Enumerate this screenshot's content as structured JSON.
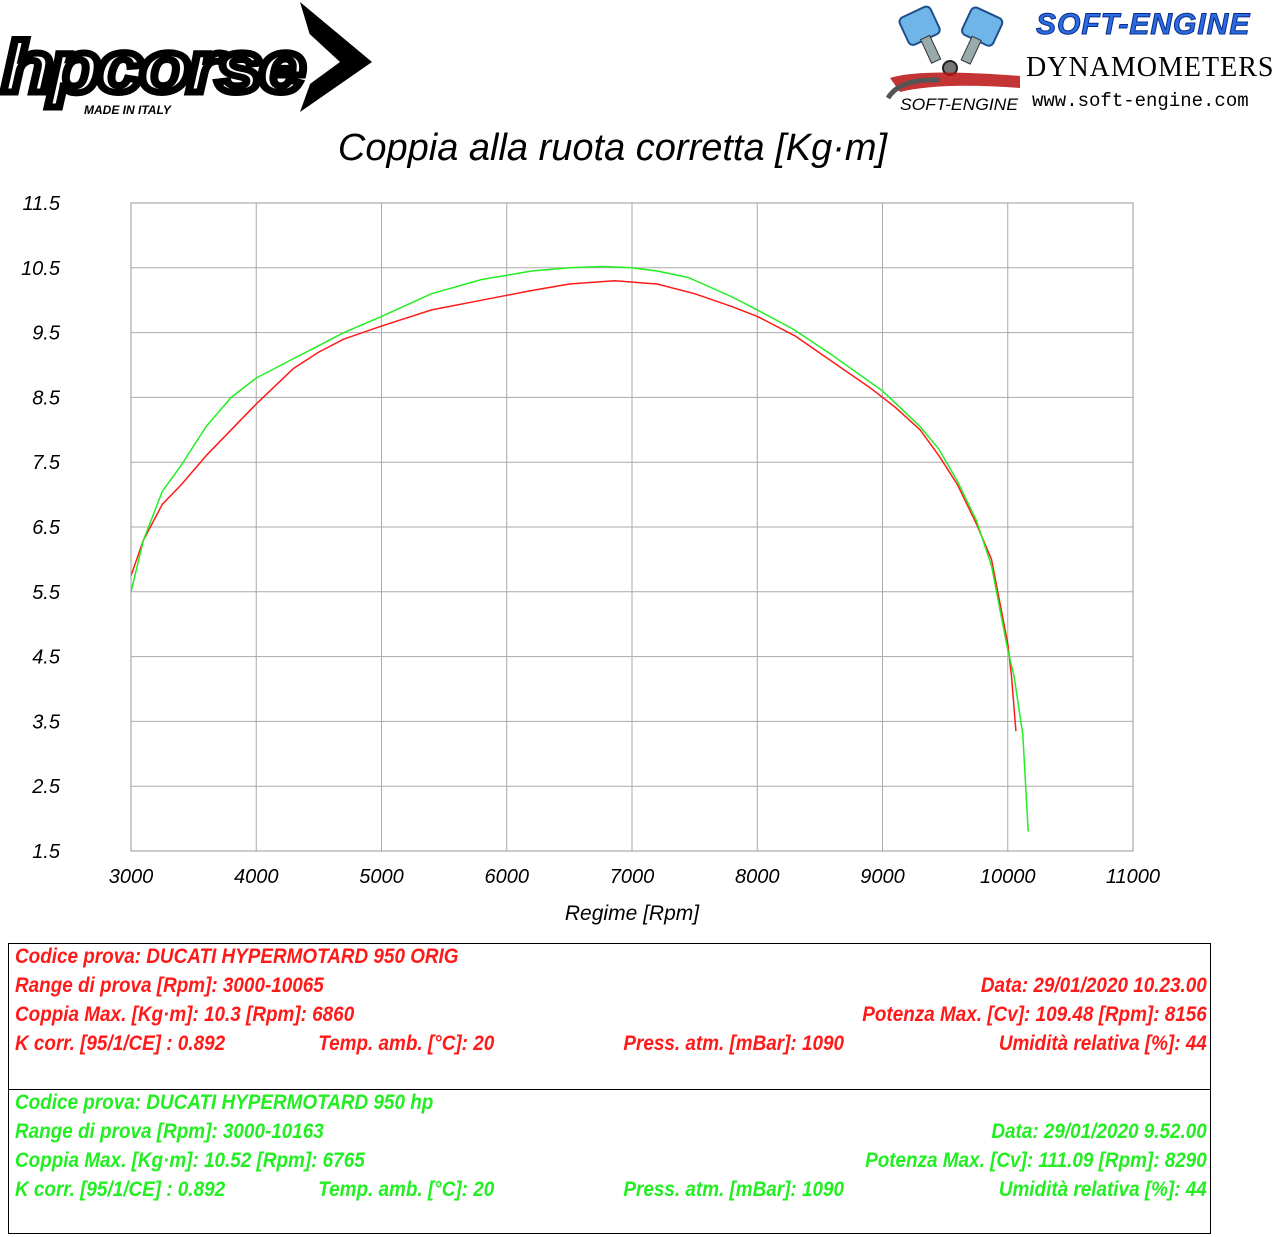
{
  "header": {
    "left_logo": {
      "brand": "hpcorse",
      "tagline": "MADE IN ITALY",
      "icon": "hp-chevron-logo"
    },
    "right_logo": {
      "brand": "SOFT-ENGINE",
      "subtitle": "DYNAMOMETERS",
      "url": "www.soft-engine.com",
      "emblem_text": "SOFT-ENGINE",
      "icon": "v-twin-pistons-icon"
    }
  },
  "chart_data": {
    "type": "line",
    "title": "Coppia alla ruota corretta [Kg·m]",
    "xlabel": "Regime [Rpm]",
    "ylabel": "",
    "xlim": [
      3000,
      11000
    ],
    "ylim": [
      1.5,
      11.5
    ],
    "x_ticks": [
      "3000",
      "4000",
      "5000",
      "6000",
      "7000",
      "8000",
      "9000",
      "10000",
      "11000"
    ],
    "y_ticks": [
      "11.5",
      "10.5",
      "9.5",
      "8.5",
      "7.5",
      "6.5",
      "5.5",
      "4.5",
      "3.5",
      "2.5",
      "1.5"
    ],
    "grid": true,
    "series": [
      {
        "color": "#ff1a1a",
        "x": [
          3000,
          3100,
          3250,
          3400,
          3600,
          3800,
          4000,
          4300,
          4500,
          4700,
          5000,
          5400,
          5800,
          6200,
          6500,
          6860,
          7200,
          7500,
          7800,
          8000,
          8300,
          8600,
          8900,
          9100,
          9300,
          9450,
          9600,
          9750,
          9870,
          9950,
          10000,
          10030,
          10065
        ],
        "y": [
          5.75,
          6.3,
          6.85,
          7.15,
          7.6,
          8.0,
          8.4,
          8.95,
          9.2,
          9.4,
          9.6,
          9.85,
          10.0,
          10.15,
          10.25,
          10.3,
          10.25,
          10.1,
          9.9,
          9.75,
          9.45,
          9.05,
          8.65,
          8.35,
          8.0,
          7.6,
          7.15,
          6.55,
          6.0,
          5.2,
          4.7,
          4.2,
          3.35
        ]
      },
      {
        "color": "#22ee22",
        "x": [
          3000,
          3100,
          3250,
          3400,
          3600,
          3800,
          4000,
          4300,
          4500,
          4700,
          5000,
          5400,
          5800,
          6200,
          6500,
          6765,
          7000,
          7200,
          7450,
          7800,
          8000,
          8290,
          8600,
          9000,
          9300,
          9450,
          9600,
          9750,
          9870,
          9950,
          10000,
          10050,
          10120,
          10163
        ],
        "y": [
          5.5,
          6.3,
          7.05,
          7.45,
          8.05,
          8.5,
          8.8,
          9.1,
          9.3,
          9.5,
          9.75,
          10.1,
          10.32,
          10.45,
          10.5,
          10.52,
          10.5,
          10.45,
          10.35,
          10.05,
          9.85,
          9.55,
          9.15,
          8.6,
          8.05,
          7.7,
          7.2,
          6.6,
          5.9,
          5.1,
          4.6,
          4.2,
          3.3,
          1.8
        ]
      }
    ]
  },
  "info": {
    "red": {
      "color": "#ff1a1a",
      "codice": "Codice prova: DUCATI HYPERMOTARD 950 ORIG",
      "range": "Range di prova [Rpm]: 3000-10065",
      "data": "Data: 29/01/2020   10.23.00",
      "coppia": "Coppia Max. [Kg·m]: 10.3   [Rpm]: 6860",
      "potenza": "Potenza Max. [Cv]: 109.48   [Rpm]: 8156",
      "kcorr": "K corr. [95/1/CE] : 0.892",
      "temp": "Temp. amb. [°C]: 20",
      "press": "Press. atm. [mBar]: 1090",
      "umidita": "Umidità relativa [%]: 44"
    },
    "green": {
      "color": "#22ee22",
      "codice": "Codice prova: DUCATI HYPERMOTARD 950 hp",
      "range": "Range di prova [Rpm]: 3000-10163",
      "data": "Data: 29/01/2020   9.52.00",
      "coppia": "Coppia Max. [Kg·m]: 10.52   [Rpm]: 6765",
      "potenza": "Potenza Max. [Cv]: 111.09   [Rpm]: 8290",
      "kcorr": "K corr. [95/1/CE] : 0.892",
      "temp": "Temp. amb. [°C]: 20",
      "press": "Press. atm. [mBar]: 1090",
      "umidita": "Umidità relativa [%]: 44"
    }
  }
}
